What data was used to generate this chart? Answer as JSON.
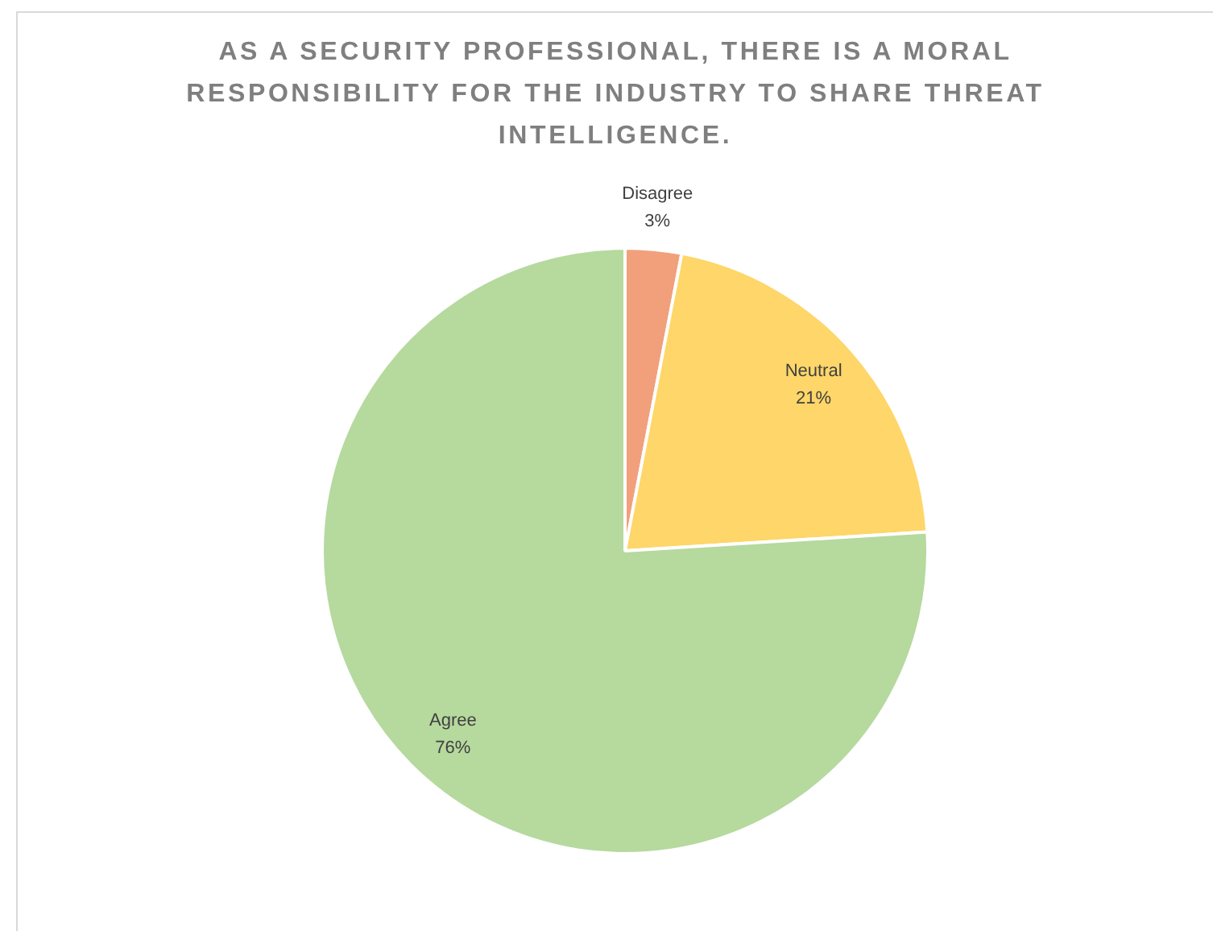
{
  "chart_data": {
    "type": "pie",
    "title": "AS A SECURITY PROFESSIONAL, THERE IS A MORAL RESPONSIBILITY FOR THE INDUSTRY TO SHARE THREAT INTELLIGENCE.",
    "categories": [
      "Disagree",
      "Neutral",
      "Agree"
    ],
    "values": [
      3,
      21,
      76
    ],
    "colors": [
      "#f2a07c",
      "#fed669",
      "#b6d99e"
    ],
    "value_labels": [
      "3%",
      "21%",
      "76%"
    ]
  }
}
